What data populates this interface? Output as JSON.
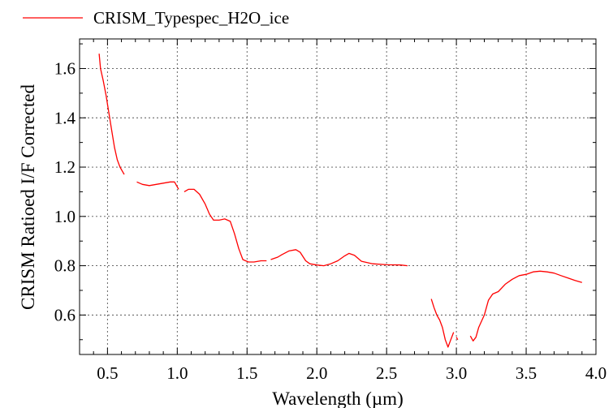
{
  "chart_data": {
    "type": "line",
    "xlabel": "Wavelength (µm)",
    "ylabel": "CRISM Ratioed I/F Corrected",
    "xlim": [
      0.3,
      4.0
    ],
    "ylim": [
      0.44,
      1.72
    ],
    "xticks": [
      0.5,
      1.0,
      1.5,
      2.0,
      2.5,
      3.0,
      3.5,
      4.0
    ],
    "xtick_labels": [
      "0.5",
      "1.0",
      "1.5",
      "2.0",
      "2.5",
      "3.0",
      "3.5",
      "4.0"
    ],
    "yticks": [
      0.6,
      0.8,
      1.0,
      1.2,
      1.4,
      1.6
    ],
    "ytick_labels": [
      "0.6",
      "0.8",
      "1.0",
      "1.2",
      "1.4",
      "1.6"
    ],
    "grid": true,
    "legend": "top-left, outside plot",
    "series": [
      {
        "name": "CRISM_Typespec_H2O_ice",
        "color": "#ff0000",
        "segments": [
          [
            [
              0.44,
              1.66
            ],
            [
              0.45,
              1.6
            ],
            [
              0.47,
              1.55
            ],
            [
              0.49,
              1.49
            ],
            [
              0.51,
              1.42
            ],
            [
              0.53,
              1.35
            ],
            [
              0.55,
              1.28
            ],
            [
              0.57,
              1.23
            ],
            [
              0.59,
              1.2
            ],
            [
              0.62,
              1.17
            ]
          ],
          [
            [
              0.71,
              1.14
            ],
            [
              0.75,
              1.13
            ],
            [
              0.8,
              1.125
            ],
            [
              0.85,
              1.13
            ],
            [
              0.9,
              1.135
            ],
            [
              0.95,
              1.14
            ],
            [
              0.98,
              1.14
            ],
            [
              1.0,
              1.12
            ],
            [
              1.01,
              1.11
            ]
          ],
          [
            [
              1.05,
              1.1
            ],
            [
              1.08,
              1.11
            ],
            [
              1.12,
              1.11
            ],
            [
              1.16,
              1.09
            ],
            [
              1.2,
              1.05
            ],
            [
              1.23,
              1.01
            ],
            [
              1.26,
              0.985
            ],
            [
              1.3,
              0.985
            ],
            [
              1.34,
              0.99
            ],
            [
              1.38,
              0.98
            ],
            [
              1.41,
              0.93
            ],
            [
              1.44,
              0.87
            ],
            [
              1.47,
              0.825
            ],
            [
              1.51,
              0.815
            ],
            [
              1.55,
              0.815
            ],
            [
              1.6,
              0.82
            ],
            [
              1.64,
              0.82
            ]
          ],
          [
            [
              1.67,
              0.825
            ],
            [
              1.72,
              0.835
            ],
            [
              1.75,
              0.845
            ],
            [
              1.8,
              0.86
            ],
            [
              1.85,
              0.865
            ],
            [
              1.88,
              0.855
            ],
            [
              1.92,
              0.82
            ],
            [
              1.95,
              0.808
            ],
            [
              2.0,
              0.803
            ],
            [
              2.05,
              0.8
            ],
            [
              2.1,
              0.808
            ],
            [
              2.15,
              0.82
            ],
            [
              2.2,
              0.84
            ],
            [
              2.23,
              0.85
            ],
            [
              2.27,
              0.842
            ],
            [
              2.32,
              0.818
            ],
            [
              2.4,
              0.808
            ],
            [
              2.5,
              0.804
            ],
            [
              2.6,
              0.803
            ],
            [
              2.65,
              0.8
            ]
          ],
          [
            [
              2.82,
              0.665
            ],
            [
              2.84,
              0.63
            ],
            [
              2.86,
              0.6
            ],
            [
              2.88,
              0.58
            ],
            [
              2.9,
              0.55
            ],
            [
              2.92,
              0.5
            ],
            [
              2.94,
              0.47
            ],
            [
              2.96,
              0.5
            ],
            [
              2.98,
              0.53
            ]
          ],
          [
            [
              3.0,
              0.51
            ],
            [
              3.01,
              0.5
            ]
          ],
          [
            [
              3.1,
              0.515
            ],
            [
              3.12,
              0.495
            ],
            [
              3.14,
              0.51
            ],
            [
              3.16,
              0.55
            ],
            [
              3.2,
              0.6
            ],
            [
              3.23,
              0.66
            ],
            [
              3.26,
              0.685
            ],
            [
              3.3,
              0.695
            ],
            [
              3.35,
              0.725
            ],
            [
              3.4,
              0.745
            ],
            [
              3.45,
              0.76
            ],
            [
              3.5,
              0.765
            ],
            [
              3.55,
              0.775
            ],
            [
              3.6,
              0.778
            ],
            [
              3.65,
              0.775
            ],
            [
              3.7,
              0.77
            ],
            [
              3.75,
              0.76
            ],
            [
              3.8,
              0.75
            ],
            [
              3.85,
              0.74
            ],
            [
              3.9,
              0.732
            ]
          ]
        ]
      }
    ]
  }
}
